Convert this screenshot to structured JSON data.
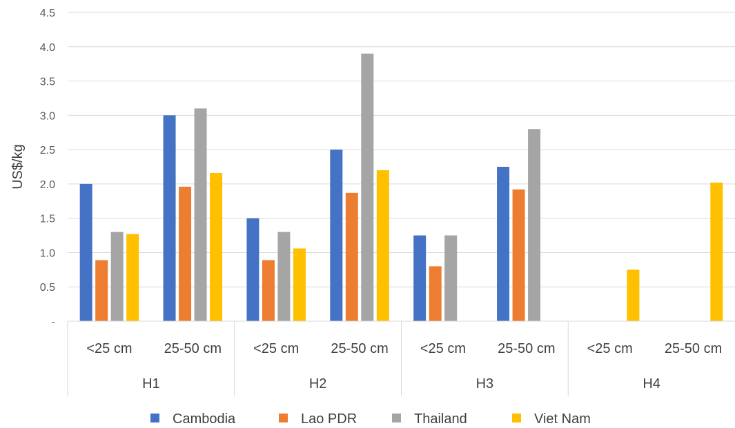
{
  "chart_data": {
    "type": "bar",
    "title": "",
    "ylabel": "US$/kg",
    "xlabel": "",
    "ylim": [
      0,
      4.5
    ],
    "yticks": [
      0,
      0.5,
      1.0,
      1.5,
      2.0,
      2.5,
      3.0,
      3.5,
      4.0,
      4.5
    ],
    "ytick_labels": [
      "-",
      "0.5",
      "1.0",
      "1.5",
      "2.0",
      "2.5",
      "3.0",
      "3.5",
      "4.0",
      "4.5"
    ],
    "grid": true,
    "legend_position": "bottom",
    "groups": [
      {
        "label": "H1",
        "categories": [
          "<25 cm",
          "25-50 cm"
        ]
      },
      {
        "label": "H2",
        "categories": [
          "<25 cm",
          "25-50 cm"
        ]
      },
      {
        "label": "H3",
        "categories": [
          "<25 cm",
          "25-50 cm"
        ]
      },
      {
        "label": "H4",
        "categories": [
          "<25 cm",
          "25-50 cm"
        ]
      }
    ],
    "series": [
      {
        "name": "Cambodia",
        "color": "#4472C4",
        "values": [
          2.0,
          3.0,
          1.5,
          2.5,
          1.25,
          2.25,
          null,
          null
        ]
      },
      {
        "name": "Lao PDR",
        "color": "#ED7D31",
        "values": [
          0.89,
          1.96,
          0.89,
          1.87,
          0.8,
          1.92,
          null,
          null
        ]
      },
      {
        "name": "Thailand",
        "color": "#A5A5A5",
        "values": [
          1.3,
          3.1,
          1.3,
          3.9,
          1.25,
          2.8,
          null,
          null
        ]
      },
      {
        "name": "Viet Nam",
        "color": "#FFC000",
        "values": [
          1.27,
          2.16,
          1.06,
          2.2,
          null,
          null,
          0.75,
          2.02
        ]
      }
    ]
  }
}
